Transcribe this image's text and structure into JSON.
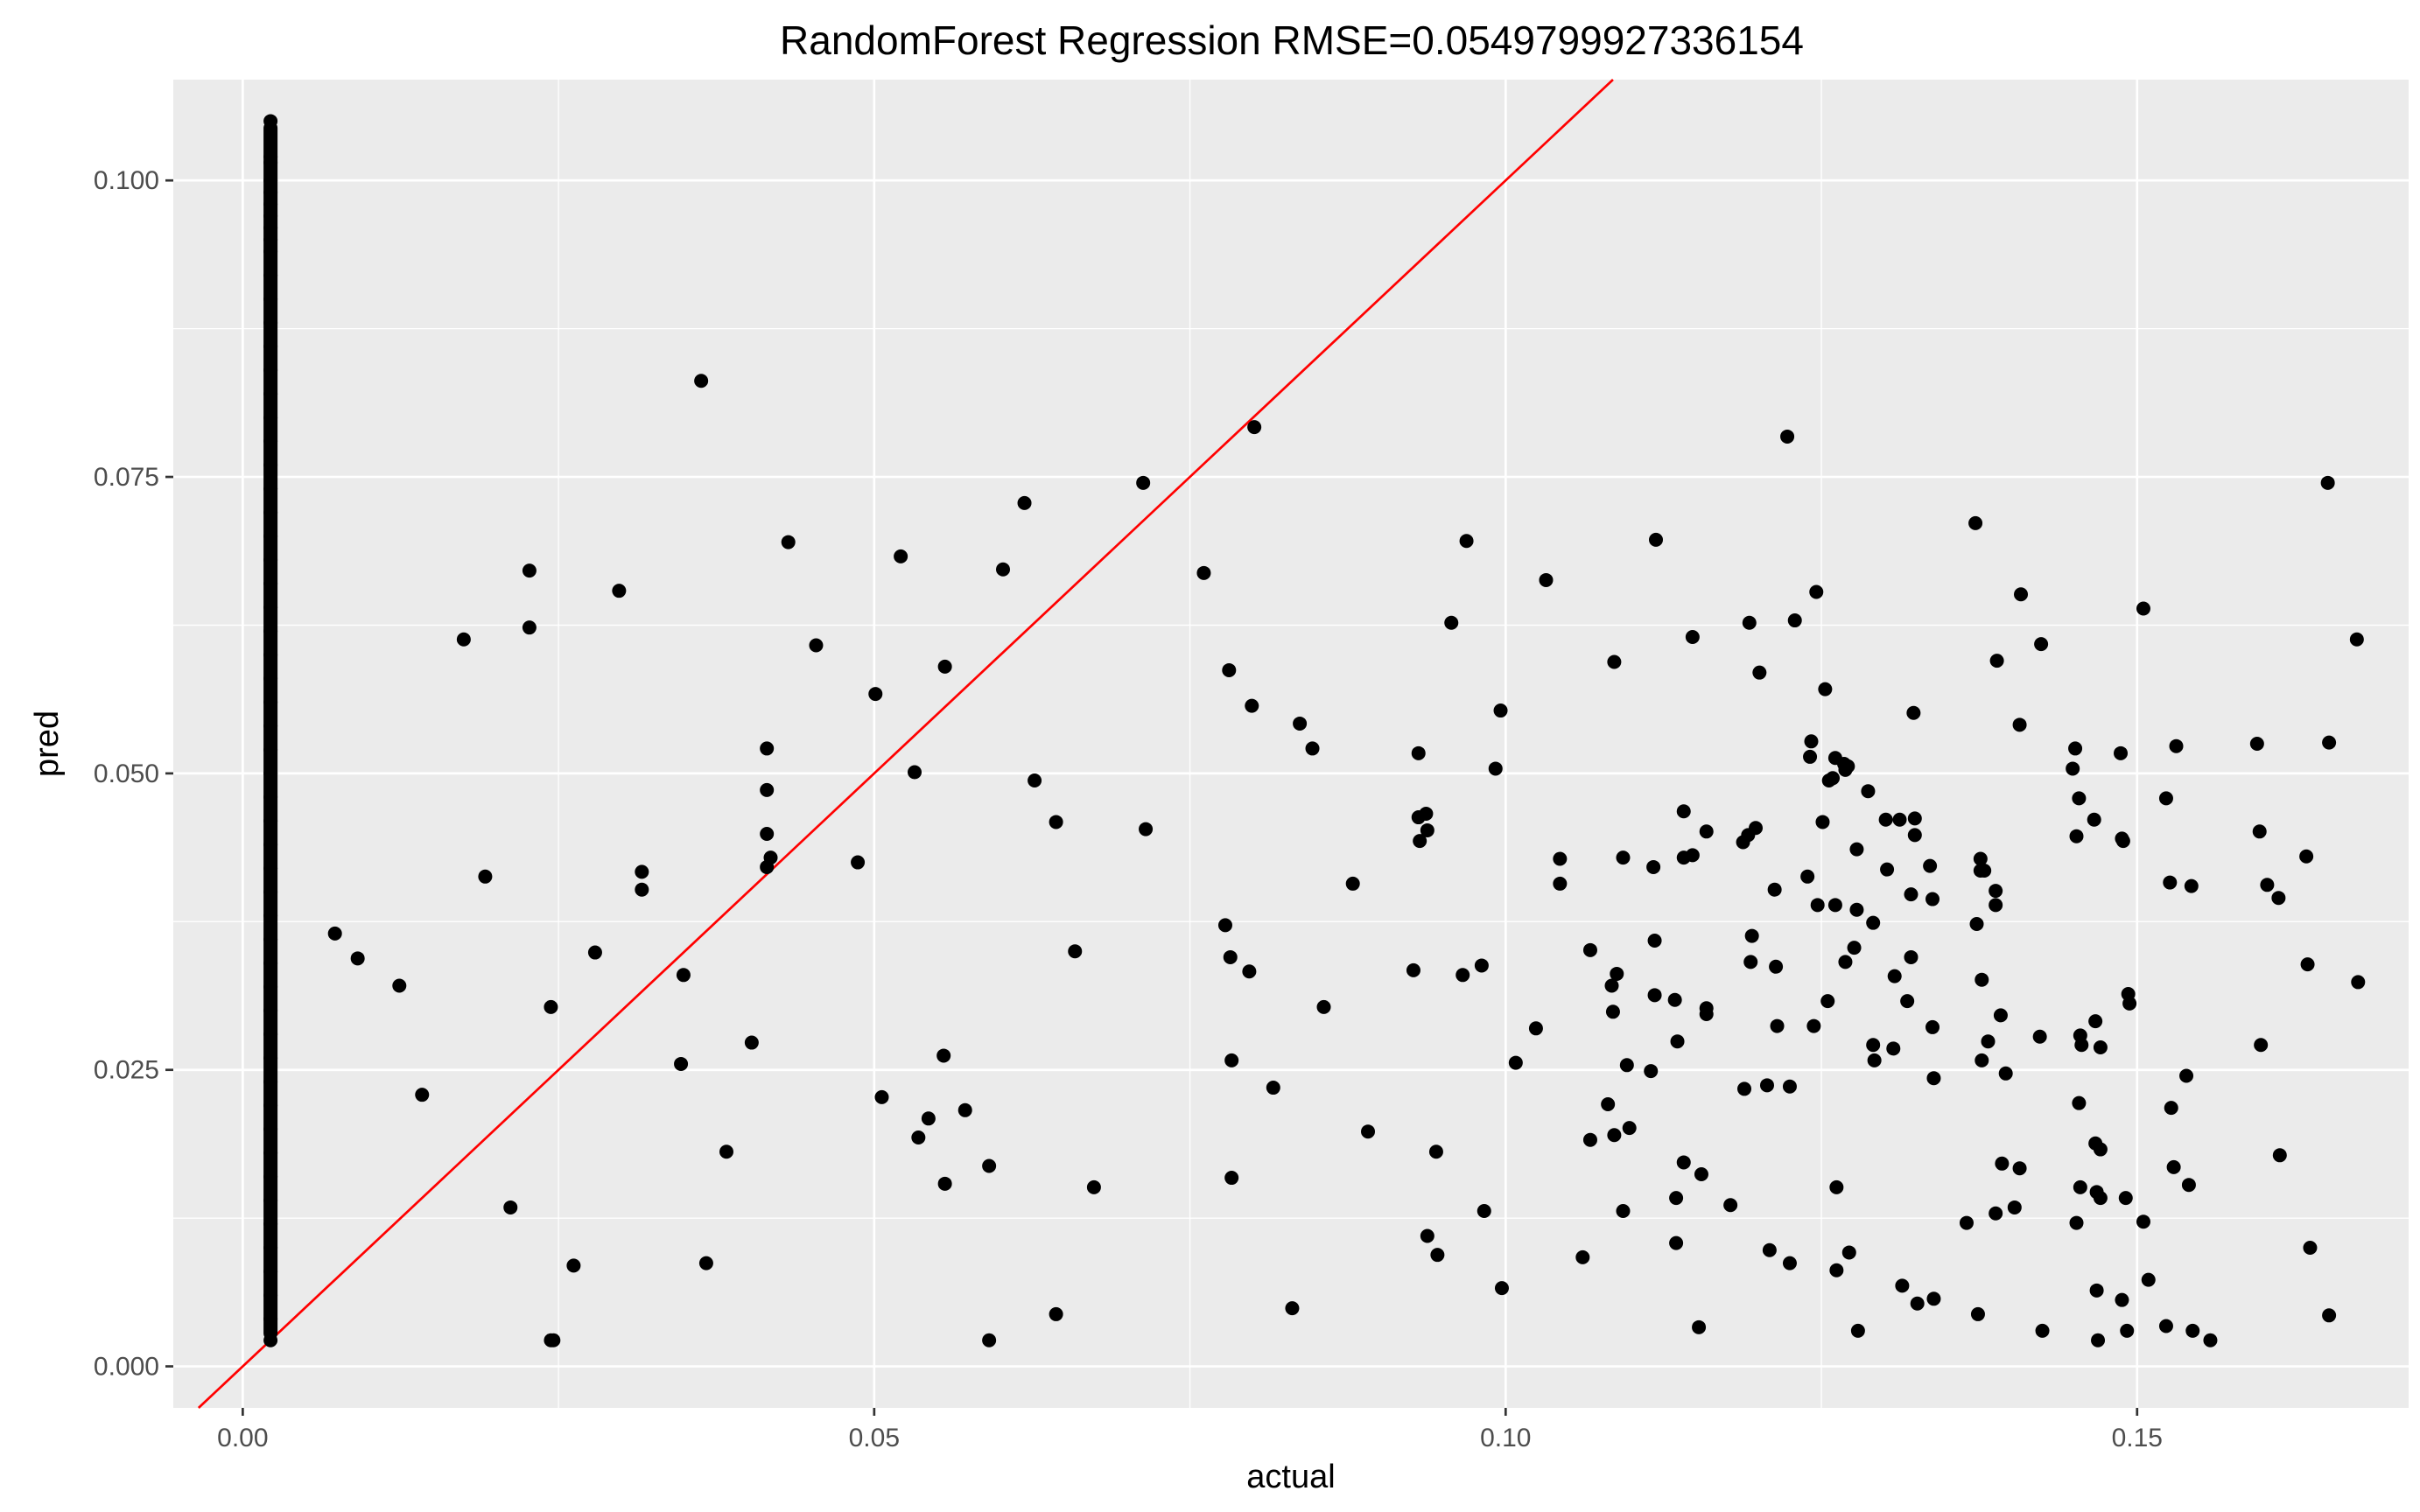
{
  "chart_data": {
    "type": "scatter",
    "title": "RandomForest Regression RMSE=0.0549799927336154",
    "xlabel": "actual",
    "ylabel": "pred",
    "xlim": [
      -0.0055,
      0.1715
    ],
    "ylim": [
      -0.0035,
      0.1085
    ],
    "xticks": [
      0.0,
      0.05,
      0.1,
      0.15
    ],
    "xtick_labels": [
      "0.00",
      "0.05",
      "0.10",
      "0.15"
    ],
    "yticks": [
      0.0,
      0.025,
      0.05,
      0.075,
      0.1
    ],
    "ytick_labels": [
      "0.000",
      "0.025",
      "0.050",
      "0.075",
      "0.100"
    ],
    "grid": true,
    "legend": "none",
    "reference_line": {
      "slope": 1,
      "intercept": 0,
      "color": "#ff0000"
    },
    "point_color": "#000000",
    "zero_column": {
      "x": 0.0022,
      "y_min": 0.0022,
      "y_max": 0.105
    },
    "points": [
      [
        0.0022,
        0.105
      ],
      [
        0.0022,
        0.102
      ],
      [
        0.0022,
        0.1015
      ],
      [
        0.0022,
        0.1
      ],
      [
        0.0022,
        0.099
      ],
      [
        0.0022,
        0.098
      ],
      [
        0.0022,
        0.097
      ],
      [
        0.0022,
        0.096
      ],
      [
        0.0022,
        0.095
      ],
      [
        0.0022,
        0.094
      ],
      [
        0.0022,
        0.092
      ],
      [
        0.0022,
        0.09
      ],
      [
        0.0022,
        0.088
      ],
      [
        0.0022,
        0.086
      ],
      [
        0.0022,
        0.084
      ],
      [
        0.0022,
        0.082
      ],
      [
        0.0022,
        0.08
      ],
      [
        0.0022,
        0.078
      ],
      [
        0.0022,
        0.076
      ],
      [
        0.0022,
        0.074
      ],
      [
        0.0022,
        0.072
      ],
      [
        0.0022,
        0.07
      ],
      [
        0.0022,
        0.068
      ],
      [
        0.0022,
        0.066
      ],
      [
        0.0022,
        0.064
      ],
      [
        0.0022,
        0.062
      ],
      [
        0.0022,
        0.06
      ],
      [
        0.0022,
        0.058
      ],
      [
        0.0022,
        0.056
      ],
      [
        0.0022,
        0.054
      ],
      [
        0.0022,
        0.052
      ],
      [
        0.0022,
        0.05
      ],
      [
        0.0022,
        0.048
      ],
      [
        0.0022,
        0.046
      ],
      [
        0.0022,
        0.044
      ],
      [
        0.0022,
        0.042
      ],
      [
        0.0022,
        0.04
      ],
      [
        0.0022,
        0.038
      ],
      [
        0.0022,
        0.036
      ],
      [
        0.0022,
        0.034
      ],
      [
        0.0022,
        0.032
      ],
      [
        0.0022,
        0.03
      ],
      [
        0.0022,
        0.028
      ],
      [
        0.0022,
        0.026
      ],
      [
        0.0022,
        0.024
      ],
      [
        0.0022,
        0.022
      ],
      [
        0.0022,
        0.02
      ],
      [
        0.0022,
        0.018
      ],
      [
        0.0022,
        0.016
      ],
      [
        0.0022,
        0.014
      ],
      [
        0.0022,
        0.012
      ],
      [
        0.0022,
        0.01
      ],
      [
        0.0022,
        0.008
      ],
      [
        0.0022,
        0.006
      ],
      [
        0.0022,
        0.004
      ],
      [
        0.0022,
        0.0022
      ],
      [
        0.0073,
        0.0365
      ],
      [
        0.0091,
        0.0344
      ],
      [
        0.0124,
        0.0321
      ],
      [
        0.0142,
        0.0229
      ],
      [
        0.0175,
        0.0613
      ],
      [
        0.0192,
        0.0413
      ],
      [
        0.0212,
        0.0134
      ],
      [
        0.0227,
        0.0671
      ],
      [
        0.0227,
        0.0623
      ],
      [
        0.0244,
        0.0303
      ],
      [
        0.0244,
        0.0022
      ],
      [
        0.0246,
        0.0022
      ],
      [
        0.0262,
        0.0085
      ],
      [
        0.0279,
        0.0349
      ],
      [
        0.0298,
        0.0654
      ],
      [
        0.0316,
        0.0417
      ],
      [
        0.0316,
        0.0402
      ],
      [
        0.0347,
        0.0255
      ],
      [
        0.0349,
        0.033
      ],
      [
        0.0363,
        0.0831
      ],
      [
        0.0367,
        0.0087
      ],
      [
        0.0383,
        0.0181
      ],
      [
        0.0403,
        0.0273
      ],
      [
        0.0415,
        0.0521
      ],
      [
        0.0415,
        0.0486
      ],
      [
        0.0415,
        0.0449
      ],
      [
        0.0415,
        0.0421
      ],
      [
        0.0418,
        0.0429
      ],
      [
        0.0432,
        0.0695
      ],
      [
        0.0454,
        0.0608
      ],
      [
        0.0487,
        0.0425
      ],
      [
        0.0501,
        0.0567
      ],
      [
        0.0506,
        0.0227
      ],
      [
        0.0521,
        0.0683
      ],
      [
        0.0532,
        0.0501
      ],
      [
        0.0535,
        0.0193
      ],
      [
        0.0543,
        0.0209
      ],
      [
        0.0555,
        0.0262
      ],
      [
        0.0556,
        0.059
      ],
      [
        0.0556,
        0.0154
      ],
      [
        0.0572,
        0.0216
      ],
      [
        0.0591,
        0.0169
      ],
      [
        0.0591,
        0.0022
      ],
      [
        0.0602,
        0.0672
      ],
      [
        0.0619,
        0.0728
      ],
      [
        0.0627,
        0.0494
      ],
      [
        0.0644,
        0.0459
      ],
      [
        0.0644,
        0.0044
      ],
      [
        0.0659,
        0.035
      ],
      [
        0.0674,
        0.0151
      ],
      [
        0.0713,
        0.0745
      ],
      [
        0.0715,
        0.0453
      ],
      [
        0.0761,
        0.0669
      ],
      [
        0.0778,
        0.0372
      ],
      [
        0.0781,
        0.0587
      ],
      [
        0.0782,
        0.0345
      ],
      [
        0.0783,
        0.0258
      ],
      [
        0.0783,
        0.0159
      ],
      [
        0.0797,
        0.0333
      ],
      [
        0.0799,
        0.0557
      ],
      [
        0.0801,
        0.0792
      ],
      [
        0.0816,
        0.0235
      ],
      [
        0.0831,
        0.0049
      ],
      [
        0.0837,
        0.0542
      ],
      [
        0.0847,
        0.0521
      ],
      [
        0.0856,
        0.0303
      ],
      [
        0.0879,
        0.0407
      ],
      [
        0.0891,
        0.0198
      ],
      [
        0.0927,
        0.0334
      ],
      [
        0.0931,
        0.0517
      ],
      [
        0.0931,
        0.0463
      ],
      [
        0.0932,
        0.0443
      ],
      [
        0.0937,
        0.0466
      ],
      [
        0.0938,
        0.0452
      ],
      [
        0.0938,
        0.011
      ],
      [
        0.0945,
        0.0181
      ],
      [
        0.0946,
        0.0094
      ],
      [
        0.0957,
        0.0627
      ],
      [
        0.0966,
        0.033
      ],
      [
        0.0969,
        0.0696
      ],
      [
        0.0981,
        0.0338
      ],
      [
        0.0983,
        0.0131
      ],
      [
        0.0992,
        0.0504
      ],
      [
        0.0996,
        0.0553
      ],
      [
        0.0997,
        0.0066
      ],
      [
        0.1008,
        0.0256
      ],
      [
        0.1024,
        0.0285
      ],
      [
        0.1032,
        0.0663
      ],
      [
        0.1043,
        0.0428
      ],
      [
        0.1043,
        0.0407
      ],
      [
        0.1061,
        0.0092
      ],
      [
        0.1067,
        0.0351
      ],
      [
        0.1067,
        0.0191
      ],
      [
        0.1081,
        0.0221
      ],
      [
        0.1084,
        0.0321
      ],
      [
        0.1085,
        0.0299
      ],
      [
        0.1086,
        0.0594
      ],
      [
        0.1086,
        0.0195
      ],
      [
        0.1088,
        0.0331
      ],
      [
        0.1093,
        0.0429
      ],
      [
        0.1093,
        0.0131
      ],
      [
        0.1096,
        0.0254
      ],
      [
        0.1098,
        0.0201
      ],
      [
        0.1115,
        0.0249
      ],
      [
        0.1117,
        0.0421
      ],
      [
        0.1118,
        0.0359
      ],
      [
        0.1118,
        0.0313
      ],
      [
        0.1119,
        0.0697
      ],
      [
        0.1134,
        0.0309
      ],
      [
        0.1135,
        0.0142
      ],
      [
        0.1135,
        0.0104
      ],
      [
        0.1136,
        0.0274
      ],
      [
        0.1141,
        0.0468
      ],
      [
        0.1141,
        0.0429
      ],
      [
        0.1141,
        0.0172
      ],
      [
        0.1148,
        0.0615
      ],
      [
        0.1148,
        0.0431
      ],
      [
        0.1153,
        0.0033
      ],
      [
        0.1155,
        0.0162
      ],
      [
        0.1159,
        0.0451
      ],
      [
        0.1159,
        0.0302
      ],
      [
        0.1159,
        0.0297
      ],
      [
        0.1178,
        0.0136
      ],
      [
        0.1188,
        0.0442
      ],
      [
        0.1189,
        0.0234
      ],
      [
        0.1192,
        0.0448
      ],
      [
        0.1193,
        0.0627
      ],
      [
        0.1194,
        0.0341
      ],
      [
        0.1195,
        0.0363
      ],
      [
        0.1198,
        0.0454
      ],
      [
        0.1201,
        0.0585
      ],
      [
        0.1207,
        0.0237
      ],
      [
        0.1209,
        0.0098
      ],
      [
        0.1213,
        0.0402
      ],
      [
        0.1214,
        0.0337
      ],
      [
        0.1215,
        0.0287
      ],
      [
        0.1223,
        0.0784
      ],
      [
        0.1225,
        0.0236
      ],
      [
        0.1225,
        0.0087
      ],
      [
        0.1229,
        0.0629
      ],
      [
        0.1239,
        0.0413
      ],
      [
        0.1241,
        0.0514
      ],
      [
        0.1242,
        0.0527
      ],
      [
        0.1244,
        0.0287
      ],
      [
        0.1246,
        0.0653
      ],
      [
        0.1247,
        0.0389
      ],
      [
        0.1251,
        0.0459
      ],
      [
        0.1253,
        0.0571
      ],
      [
        0.1255,
        0.0308
      ],
      [
        0.1256,
        0.0494
      ],
      [
        0.1259,
        0.0496
      ],
      [
        0.1261,
        0.0513
      ],
      [
        0.1261,
        0.0389
      ],
      [
        0.1262,
        0.0151
      ],
      [
        0.1262,
        0.0081
      ],
      [
        0.1268,
        0.0508
      ],
      [
        0.1269,
        0.0503
      ],
      [
        0.1269,
        0.0341
      ],
      [
        0.1271,
        0.0506
      ],
      [
        0.1272,
        0.0096
      ],
      [
        0.1276,
        0.0353
      ],
      [
        0.1278,
        0.0385
      ],
      [
        0.1278,
        0.0436
      ],
      [
        0.1279,
        0.003
      ],
      [
        0.1287,
        0.0485
      ],
      [
        0.1291,
        0.0374
      ],
      [
        0.1291,
        0.0271
      ],
      [
        0.1292,
        0.0258
      ],
      [
        0.1301,
        0.0461
      ],
      [
        0.1302,
        0.0419
      ],
      [
        0.1307,
        0.0268
      ],
      [
        0.1308,
        0.0329
      ],
      [
        0.1312,
        0.0461
      ],
      [
        0.1314,
        0.0068
      ],
      [
        0.1318,
        0.0308
      ],
      [
        0.1321,
        0.0398
      ],
      [
        0.1321,
        0.0345
      ],
      [
        0.1323,
        0.0551
      ],
      [
        0.1324,
        0.0462
      ],
      [
        0.1324,
        0.0448
      ],
      [
        0.1326,
        0.0053
      ],
      [
        0.1336,
        0.0422
      ],
      [
        0.1338,
        0.0394
      ],
      [
        0.1338,
        0.0286
      ],
      [
        0.1339,
        0.0243
      ],
      [
        0.1339,
        0.0057
      ],
      [
        0.1365,
        0.0121
      ],
      [
        0.1372,
        0.0711
      ],
      [
        0.1373,
        0.0373
      ],
      [
        0.1374,
        0.0044
      ],
      [
        0.1376,
        0.0428
      ],
      [
        0.1376,
        0.0418
      ],
      [
        0.1377,
        0.0258
      ],
      [
        0.1377,
        0.0326
      ],
      [
        0.1379,
        0.0418
      ],
      [
        0.1382,
        0.0274
      ],
      [
        0.1388,
        0.0401
      ],
      [
        0.1388,
        0.0389
      ],
      [
        0.1388,
        0.0129
      ],
      [
        0.1389,
        0.0595
      ],
      [
        0.1392,
        0.0296
      ],
      [
        0.1393,
        0.0171
      ],
      [
        0.1396,
        0.0247
      ],
      [
        0.1403,
        0.0134
      ],
      [
        0.1407,
        0.0541
      ],
      [
        0.1407,
        0.0167
      ],
      [
        0.1408,
        0.0651
      ],
      [
        0.1423,
        0.0278
      ],
      [
        0.1424,
        0.0609
      ],
      [
        0.1425,
        0.003
      ],
      [
        0.1449,
        0.0504
      ],
      [
        0.1451,
        0.0521
      ],
      [
        0.1452,
        0.0447
      ],
      [
        0.1452,
        0.0121
      ],
      [
        0.1454,
        0.0479
      ],
      [
        0.1454,
        0.0222
      ],
      [
        0.1455,
        0.0279
      ],
      [
        0.1455,
        0.0151
      ],
      [
        0.1456,
        0.0271
      ],
      [
        0.1466,
        0.0461
      ],
      [
        0.1467,
        0.0291
      ],
      [
        0.1467,
        0.0188
      ],
      [
        0.1468,
        0.0064
      ],
      [
        0.1468,
        0.0147
      ],
      [
        0.1469,
        0.0022
      ],
      [
        0.1471,
        0.0269
      ],
      [
        0.1471,
        0.0183
      ],
      [
        0.1471,
        0.0142
      ],
      [
        0.1487,
        0.0517
      ],
      [
        0.1488,
        0.0445
      ],
      [
        0.1488,
        0.0056
      ],
      [
        0.1489,
        0.0443
      ],
      [
        0.1491,
        0.0142
      ],
      [
        0.1492,
        0.003
      ],
      [
        0.1493,
        0.0314
      ],
      [
        0.1494,
        0.0306
      ],
      [
        0.1505,
        0.0639
      ],
      [
        0.1505,
        0.0122
      ],
      [
        0.1509,
        0.0073
      ],
      [
        0.1523,
        0.0479
      ],
      [
        0.1523,
        0.0034
      ],
      [
        0.1526,
        0.0408
      ],
      [
        0.1527,
        0.0218
      ],
      [
        0.1529,
        0.0168
      ],
      [
        0.1531,
        0.0523
      ],
      [
        0.1539,
        0.0245
      ],
      [
        0.1541,
        0.0153
      ],
      [
        0.1543,
        0.0405
      ],
      [
        0.1544,
        0.003
      ],
      [
        0.1558,
        0.0022
      ],
      [
        0.1595,
        0.0525
      ],
      [
        0.1597,
        0.0451
      ],
      [
        0.1598,
        0.0271
      ],
      [
        0.1603,
        0.0406
      ],
      [
        0.1612,
        0.0395
      ],
      [
        0.1613,
        0.0178
      ],
      [
        0.1634,
        0.043
      ],
      [
        0.1635,
        0.0339
      ],
      [
        0.1637,
        0.01
      ],
      [
        0.1651,
        0.0745
      ],
      [
        0.1652,
        0.0526
      ],
      [
        0.1652,
        0.0043
      ],
      [
        0.1674,
        0.0613
      ],
      [
        0.1675,
        0.0324
      ]
    ]
  }
}
